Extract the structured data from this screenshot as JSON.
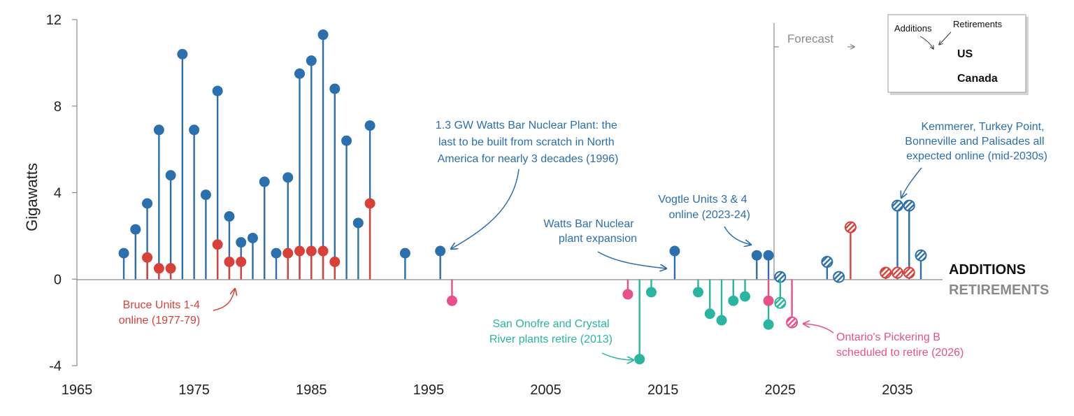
{
  "chart_data": {
    "type": "stem",
    "title": "",
    "xlabel": "",
    "ylabel": "Gigawatts",
    "xlim": [
      1965,
      2040
    ],
    "ylim": [
      -4,
      12
    ],
    "x_ticks": [
      1965,
      1975,
      1985,
      1995,
      2005,
      2015,
      2025,
      2035
    ],
    "y_ticks": [
      -4,
      0,
      4,
      8,
      12
    ],
    "colors": {
      "us": "#2b6fad",
      "canada_add": "#d8403a",
      "us_retire": "#2ab5a0",
      "canada_retire": "#e8508a",
      "axis": "#888888",
      "annotation_blue": "#2b6fad",
      "annotation_red": "#d8403a",
      "annotation_teal": "#2ab5a0",
      "annotation_pink": "#e8508a"
    },
    "series": [
      {
        "name": "US additions",
        "color": "#2b6fad",
        "points": [
          {
            "x": 1969,
            "y": 1.2
          },
          {
            "x": 1970,
            "y": 2.3
          },
          {
            "x": 1971,
            "y": 3.5
          },
          {
            "x": 1972,
            "y": 6.9
          },
          {
            "x": 1973,
            "y": 4.8
          },
          {
            "x": 1974,
            "y": 10.4
          },
          {
            "x": 1975,
            "y": 6.9
          },
          {
            "x": 1976,
            "y": 3.9
          },
          {
            "x": 1977,
            "y": 8.7
          },
          {
            "x": 1978,
            "y": 2.9
          },
          {
            "x": 1979,
            "y": 1.7
          },
          {
            "x": 1980,
            "y": 1.9
          },
          {
            "x": 1981,
            "y": 4.5
          },
          {
            "x": 1982,
            "y": 1.2
          },
          {
            "x": 1983,
            "y": 4.7
          },
          {
            "x": 1984,
            "y": 9.5
          },
          {
            "x": 1985,
            "y": 10.1
          },
          {
            "x": 1986,
            "y": 11.3
          },
          {
            "x": 1987,
            "y": 8.8
          },
          {
            "x": 1988,
            "y": 6.4
          },
          {
            "x": 1989,
            "y": 2.6
          },
          {
            "x": 1990,
            "y": 7.1
          },
          {
            "x": 1993,
            "y": 1.2
          },
          {
            "x": 1996,
            "y": 1.3
          },
          {
            "x": 2016,
            "y": 1.3
          },
          {
            "x": 2023,
            "y": 1.1
          },
          {
            "x": 2024,
            "y": 1.1
          }
        ]
      },
      {
        "name": "Canada additions",
        "color": "#d8403a",
        "points": [
          {
            "x": 1971,
            "y": 1.0
          },
          {
            "x": 1972,
            "y": 0.5
          },
          {
            "x": 1973,
            "y": 0.5
          },
          {
            "x": 1977,
            "y": 1.6
          },
          {
            "x": 1978,
            "y": 0.8
          },
          {
            "x": 1979,
            "y": 0.8
          },
          {
            "x": 1983,
            "y": 1.2
          },
          {
            "x": 1984,
            "y": 1.3
          },
          {
            "x": 1985,
            "y": 1.3
          },
          {
            "x": 1986,
            "y": 1.3
          },
          {
            "x": 1987,
            "y": 0.8
          },
          {
            "x": 1990,
            "y": 3.5
          }
        ]
      },
      {
        "name": "US retirements",
        "color": "#2ab5a0",
        "points": [
          {
            "x": 2013,
            "y": -3.7
          },
          {
            "x": 2014,
            "y": -0.6
          },
          {
            "x": 2018,
            "y": -0.6
          },
          {
            "x": 2019,
            "y": -1.6
          },
          {
            "x": 2020,
            "y": -1.9
          },
          {
            "x": 2021,
            "y": -1.0
          },
          {
            "x": 2022,
            "y": -0.8
          },
          {
            "x": 2024,
            "y": -2.1
          }
        ]
      },
      {
        "name": "Canada retirements",
        "color": "#e8508a",
        "points": [
          {
            "x": 1997,
            "y": -1.0
          },
          {
            "x": 2012,
            "y": -0.7
          },
          {
            "x": 2024,
            "y": -1.0
          }
        ]
      },
      {
        "name": "US forecast additions",
        "color": "#2b6fad",
        "hatched": true,
        "points": [
          {
            "x": 2025,
            "y": 0.1
          },
          {
            "x": 2029,
            "y": 0.8
          },
          {
            "x": 2030,
            "y": 0.1
          },
          {
            "x": 2035,
            "y": 3.4
          },
          {
            "x": 2036,
            "y": 3.4
          },
          {
            "x": 2037,
            "y": 1.1
          }
        ]
      },
      {
        "name": "US forecast retirements",
        "color": "#2ab5a0",
        "hatched": true,
        "points": [
          {
            "x": 2025,
            "y": -1.1
          }
        ]
      },
      {
        "name": "Canada forecast additions",
        "color": "#d8403a",
        "hatched": true,
        "points": [
          {
            "x": 2034,
            "y": 0.3
          },
          {
            "x": 2035,
            "y": 0.3
          },
          {
            "x": 2036,
            "y": 0.3
          }
        ]
      },
      {
        "name": "Canada forecast retirements",
        "color": "#e8508a",
        "hatched": true,
        "points": [
          {
            "x": 2026,
            "y": -2.0
          }
        ]
      }
    ],
    "solid_stems": [
      {
        "x": 2031,
        "y": 2.4,
        "color": "#d8403a",
        "hatched": true
      }
    ],
    "annotations": [
      {
        "id": "watts-bar",
        "lines": [
          "1.3 GW Watts Bar Nuclear Plant: the",
          "last to be built from scratch in North",
          "America for nearly 3 decades (1996)"
        ],
        "color": "#2b6fad"
      },
      {
        "id": "watts-bar-expansion",
        "lines": [
          "Watts Bar Nuclear",
          "plant expansion"
        ],
        "color": "#2b6fad"
      },
      {
        "id": "vogtle",
        "lines": [
          "Vogtle Units 3 & 4",
          "online (2023-24)"
        ],
        "color": "#2b6fad"
      },
      {
        "id": "kemmerer",
        "lines": [
          "Kemmerer, Turkey Point,",
          "Bonneville and Palisades all",
          "expected online (mid-2030s)"
        ],
        "color": "#2b6fad"
      },
      {
        "id": "bruce",
        "lines": [
          "Bruce Units 1-4",
          "online (1977-79)"
        ],
        "color": "#d8403a"
      },
      {
        "id": "san-onofre",
        "lines": [
          "San Onofre and Crystal",
          "River plants retire (2013)"
        ],
        "color": "#2ab5a0"
      },
      {
        "id": "pickering",
        "lines": [
          "Ontario's Pickering B",
          "scheduled to retire (2026)"
        ],
        "color": "#e8508a"
      }
    ],
    "forecast_label": "Forecast",
    "forecast_start": 2024.5,
    "side_labels": {
      "additions": "ADDITIONS",
      "retirements": "RETIREMENTS"
    },
    "legend": {
      "additions_label": "Additions",
      "retirements_label": "Retirements",
      "us_label": "US",
      "canada_label": "Canada",
      "placement": "top-right"
    }
  }
}
